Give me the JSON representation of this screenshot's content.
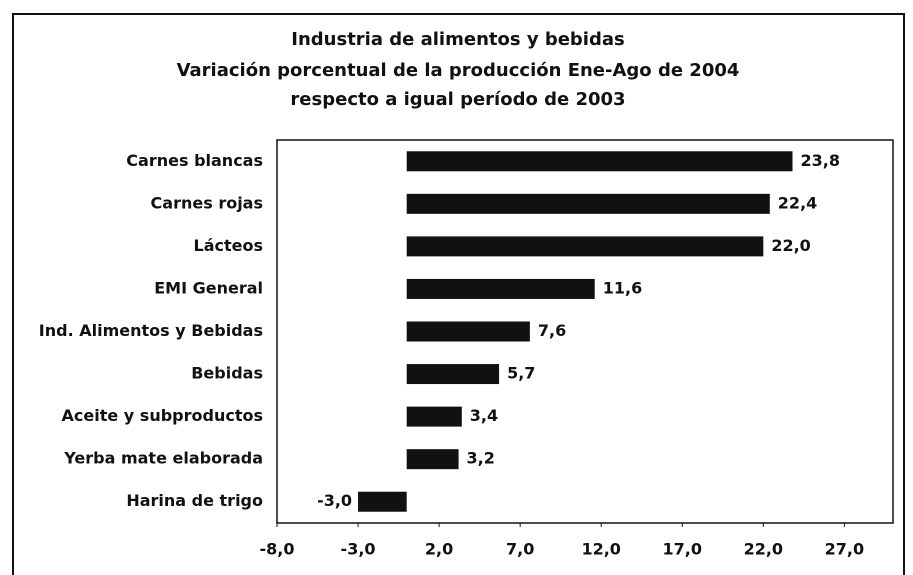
{
  "chart_data": {
    "type": "bar",
    "orientation": "horizontal",
    "title": "Industria de alimentos y bebidas",
    "subtitle": [
      "Variación porcentual de la producción Ene-Ago de 2004",
      "respecto a igual período de 2003"
    ],
    "categories": [
      "Carnes blancas",
      "Carnes rojas",
      "Lácteos",
      "EMI General",
      "Ind. Alimentos y Bebidas",
      "Bebidas",
      "Aceite y subproductos",
      "Yerba mate elaborada",
      "Harina de trigo"
    ],
    "values": [
      23.8,
      22.4,
      22.0,
      11.6,
      7.6,
      5.7,
      3.4,
      3.2,
      -3.0
    ],
    "value_labels": [
      "23,8",
      "22,4",
      "22,0",
      "11,6",
      "7,6",
      "5,7",
      "3,4",
      "3,2",
      "-3,0"
    ],
    "color": "#111111",
    "xlim": [
      -8,
      30
    ],
    "xticks": [
      {
        "value": -8,
        "label": "-8,0"
      },
      {
        "value": -3,
        "label": "-3,0"
      },
      {
        "value": 2,
        "label": "2,0"
      },
      {
        "value": 7,
        "label": "7,0"
      },
      {
        "value": 12,
        "label": "12,0"
      },
      {
        "value": 17,
        "label": "17,0"
      },
      {
        "value": 22,
        "label": "22,0"
      },
      {
        "value": 27,
        "label": "27,0"
      }
    ],
    "grid": false
  }
}
